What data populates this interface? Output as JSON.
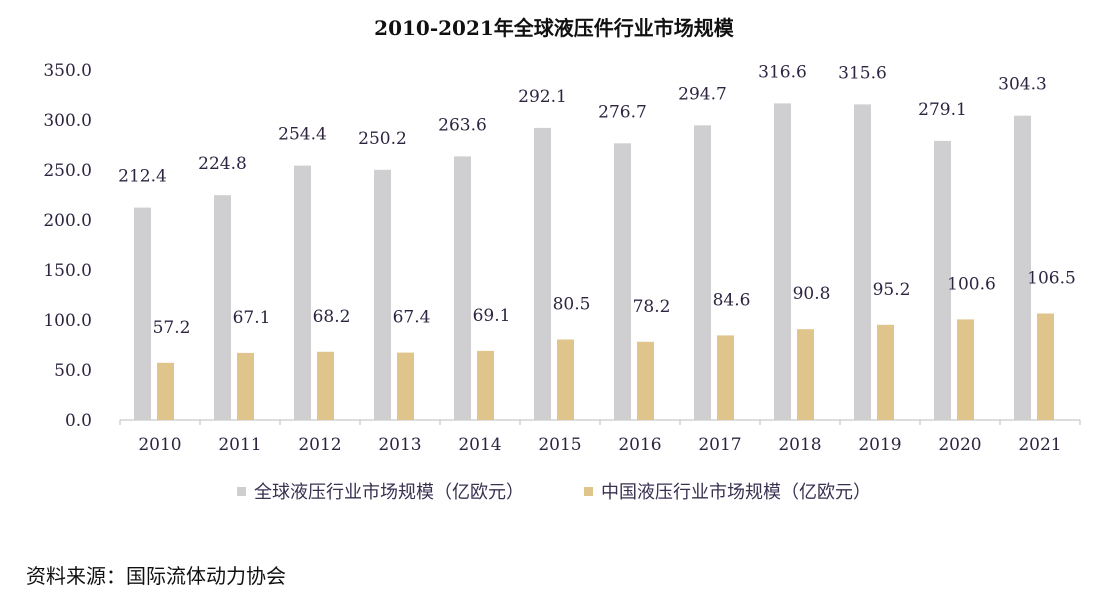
{
  "chart_data": {
    "type": "bar",
    "title": "2010-2021年全球液压件行业市场规模",
    "categories": [
      "2010",
      "2011",
      "2012",
      "2013",
      "2014",
      "2015",
      "2016",
      "2017",
      "2018",
      "2019",
      "2020",
      "2021"
    ],
    "series": [
      {
        "name": "全球液压行业市场规模（亿欧元）",
        "color": "#cfcfd2",
        "values": [
          212.4,
          224.8,
          254.4,
          250.2,
          263.6,
          292.1,
          276.7,
          294.7,
          316.6,
          315.6,
          279.1,
          304.3
        ]
      },
      {
        "name": "中国液压行业市场规模（亿欧元）",
        "color": "#dfc48c",
        "values": [
          57.2,
          67.1,
          68.2,
          67.4,
          69.1,
          80.5,
          78.2,
          84.6,
          90.8,
          95.2,
          100.6,
          106.5
        ]
      }
    ],
    "yticks": [
      "0.0",
      "50.0",
      "100.0",
      "150.0",
      "200.0",
      "250.0",
      "300.0",
      "350.0"
    ],
    "ylim": [
      0,
      350
    ],
    "grid": false,
    "legend": "bottom"
  },
  "source": "资料来源：国际流体动力协会"
}
